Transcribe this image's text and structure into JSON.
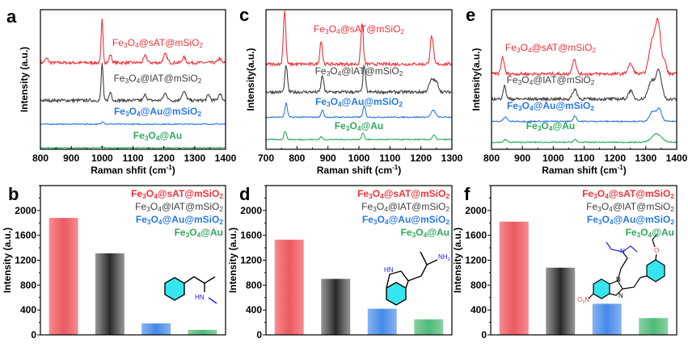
{
  "colors": {
    "sAT": "#f0323a",
    "lAT": "#404040",
    "Au_mSiO2": "#2a78e4",
    "Au": "#2eaa5c",
    "ring_fill": "#35e6f0"
  },
  "chart_data": [
    {
      "panel": "a",
      "type": "line",
      "xlabel": "Raman shfit (cm",
      "xlabel_sup": "-1",
      "xlabel_end": ")",
      "ylabel": "Intensity (a.u.)",
      "xlim": [
        800,
        1400
      ],
      "xticks": [
        "800",
        "900",
        "1000",
        "1100",
        "1200",
        "1300",
        "1400"
      ],
      "y_ticks_shown": false,
      "legend": "inline",
      "series": [
        {
          "name": "Fe3O4@sAT@mSiO2",
          "color": "#f0323a",
          "baseline": 62,
          "peaks": [
            [
              820,
              3,
              5
            ],
            [
              1000,
              31,
              3
            ],
            [
              1027,
              6,
              4
            ],
            [
              1140,
              5,
              5
            ],
            [
              1205,
              6,
              6
            ],
            [
              1265,
              4,
              5
            ],
            [
              1380,
              3,
              5
            ]
          ]
        },
        {
          "name": "Fe3O4@lAT@mSiO2",
          "color": "#404040",
          "baseline": 35,
          "peaks": [
            [
              1000,
              27,
              3
            ],
            [
              1027,
              6,
              4
            ],
            [
              1140,
              4,
              5
            ],
            [
              1205,
              5,
              6
            ],
            [
              1265,
              6,
              7
            ],
            [
              1345,
              4,
              5
            ],
            [
              1382,
              5,
              5
            ]
          ]
        },
        {
          "name": "Fe3O4@Au@mSiO2",
          "color": "#2a78e4",
          "baseline": 18,
          "peaks": [
            [
              1003,
              2,
              4
            ]
          ]
        },
        {
          "name": "Fe3O4@Au",
          "color": "#2eaa5c",
          "baseline": 1,
          "peaks": [
            [
              1000,
              1,
              4
            ]
          ]
        }
      ]
    },
    {
      "panel": "b",
      "type": "bar",
      "ylabel": "Intensity (a.u.)",
      "ylim": [
        0,
        2400
      ],
      "yticks": [
        "0",
        "400",
        "800",
        "1200",
        "1600",
        "2000"
      ],
      "categories": [
        "Fe3O4@sAT@mSiO2",
        "Fe3O4@lAT@mSiO2",
        "Fe3O4@Au@mSiO2",
        "Fe3O4@Au"
      ],
      "values": [
        1880,
        1310,
        185,
        80
      ],
      "legend": "top-right"
    },
    {
      "panel": "c",
      "type": "line",
      "xlabel": "Raman shift (cm",
      "xlabel_sup": "-1",
      "xlabel_end": ")",
      "ylabel": "Intensity(a.u.)",
      "xlim": [
        700,
        1300
      ],
      "xticks": [
        "700",
        "800",
        "900",
        "1000",
        "1100",
        "1200",
        "1300"
      ],
      "y_ticks_shown": false,
      "legend": "inline",
      "series": [
        {
          "name": "Fe3O4@sAT@mSiO2",
          "color": "#f0323a",
          "baseline": 61,
          "peaks": [
            [
              760,
              38,
              4
            ],
            [
              878,
              17,
              4
            ],
            [
              1010,
              29,
              4
            ],
            [
              1235,
              20,
              5
            ]
          ]
        },
        {
          "name": "Fe3O4@lAT@mSiO2",
          "color": "#404040",
          "baseline": 41,
          "peaks": [
            [
              765,
              19,
              4
            ],
            [
              882,
              12,
              4
            ],
            [
              1017,
              19,
              4
            ],
            [
              1236,
              9,
              9
            ],
            [
              1252,
              5,
              6
            ]
          ]
        },
        {
          "name": "Fe3O4@Au@mSiO2",
          "color": "#2a78e4",
          "baseline": 23,
          "peaks": [
            [
              765,
              10,
              4
            ],
            [
              882,
              5,
              4
            ],
            [
              1017,
              8,
              4
            ],
            [
              1240,
              5,
              7
            ]
          ]
        },
        {
          "name": "Fe3O4@Au",
          "color": "#2eaa5c",
          "baseline": 7,
          "peaks": [
            [
              762,
              6,
              4
            ],
            [
              878,
              2,
              4
            ],
            [
              1013,
              5,
              4
            ],
            [
              1242,
              3,
              5
            ]
          ]
        }
      ]
    },
    {
      "panel": "d",
      "type": "bar",
      "ylabel": "Intensity (a.u.)",
      "ylim": [
        0,
        2400
      ],
      "yticks": [
        "0",
        "400",
        "800",
        "1200",
        "1600",
        "2000"
      ],
      "categories": [
        "Fe3O4@sAT@mSiO2",
        "Fe3O4@lAT@mSiO2",
        "Fe3O4@Au@mSiO2",
        "Fe3O4@Au"
      ],
      "values": [
        1530,
        900,
        420,
        250
      ],
      "legend": "top-right"
    },
    {
      "panel": "e",
      "type": "line",
      "xlabel": "Raman shift (cm",
      "xlabel_sup": "-1",
      "xlabel_end": ")",
      "ylabel": "Intensity(a.u.)",
      "xlim": [
        800,
        1400
      ],
      "xticks": [
        "800",
        "900",
        "1000",
        "1100",
        "1200",
        "1300",
        "1400"
      ],
      "y_ticks_shown": false,
      "legend": "inline",
      "series": [
        {
          "name": "Fe3O4@sAT@mSiO2",
          "color": "#f0323a",
          "baseline": 54,
          "peaks": [
            [
              836,
              12,
              5
            ],
            [
              1068,
              11,
              6
            ],
            [
              1250,
              7,
              8
            ],
            [
              1320,
              22,
              10
            ],
            [
              1340,
              36,
              9
            ],
            [
              1362,
              8,
              5
            ]
          ]
        },
        {
          "name": "Fe3O4@lAT@mSiO2",
          "color": "#404040",
          "baseline": 36,
          "peaks": [
            [
              842,
              9,
              5
            ],
            [
              1070,
              7,
              7
            ],
            [
              1250,
              6,
              7
            ],
            [
              1318,
              13,
              10
            ],
            [
              1342,
              20,
              9
            ]
          ]
        },
        {
          "name": "Fe3O4@Au@mSiO2",
          "color": "#2a78e4",
          "baseline": 20,
          "peaks": [
            [
              845,
              3,
              6
            ],
            [
              1070,
              4,
              5
            ],
            [
              1322,
              7,
              9
            ],
            [
              1343,
              9,
              8
            ]
          ]
        },
        {
          "name": "Fe3O4@Au",
          "color": "#2eaa5c",
          "baseline": 5,
          "peaks": [
            [
              845,
              2,
              5
            ],
            [
              1070,
              2,
              5
            ],
            [
              1335,
              6,
              16
            ]
          ]
        }
      ]
    },
    {
      "panel": "f",
      "type": "bar",
      "ylabel": "Intensity (a.u.)",
      "ylim": [
        0,
        2400
      ],
      "yticks": [
        "0",
        "400",
        "800",
        "1200",
        "1600",
        "2000"
      ],
      "categories": [
        "Fe3O4@sAT@mSiO2",
        "Fe3O4@lAT@mSiO2",
        "Fe3O4@Au@mSiO2",
        "Fe3O4@Au"
      ],
      "values": [
        1820,
        1080,
        500,
        270
      ],
      "legend": "top-right"
    }
  ],
  "molecules": {
    "b": {
      "amine": "HN"
    },
    "d": {
      "indole_nh": "HN",
      "amine": "NH2"
    },
    "f": {
      "nitro": "O2N",
      "n1": "N",
      "n2": "N",
      "amine": "N",
      "oxygen": "O"
    }
  }
}
